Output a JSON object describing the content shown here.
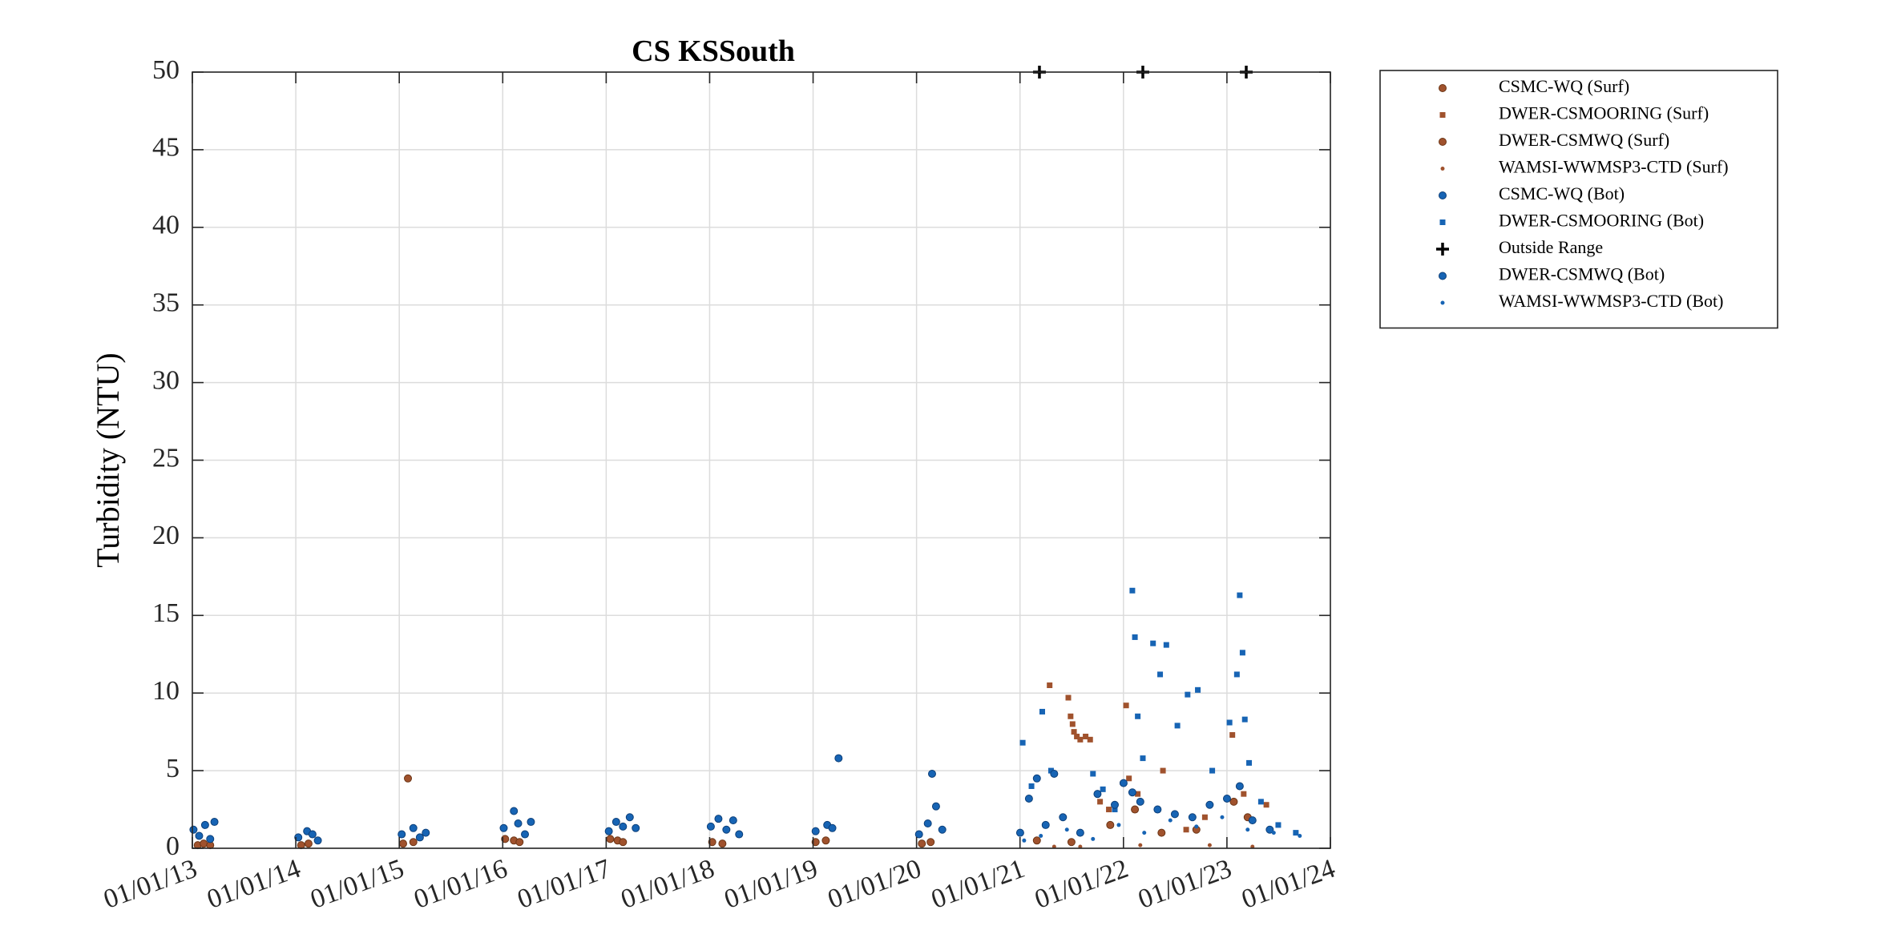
{
  "chart_data": {
    "type": "scatter",
    "title": "CS KSSouth",
    "ylabel": "Turbidity (NTU)",
    "xlabel": "",
    "ylim": [
      0,
      50
    ],
    "yticks": [
      0,
      5,
      10,
      15,
      20,
      25,
      30,
      35,
      40,
      45,
      50
    ],
    "xlim": [
      "2013-01-01",
      "2024-01-01"
    ],
    "xtick_labels": [
      "01/01/13",
      "01/01/14",
      "01/01/15",
      "01/01/16",
      "01/01/17",
      "01/01/18",
      "01/01/19",
      "01/01/20",
      "01/01/21",
      "01/01/22",
      "01/01/23",
      "01/01/24"
    ],
    "grid": true,
    "legend_position": "outside-right",
    "colors": {
      "surface": "#a0522d",
      "bottom": "#1764b4",
      "outside": "#000000"
    },
    "series": [
      {
        "name": "CSMC-WQ (Surf)",
        "marker": "circle",
        "color": "#a0522d",
        "points": [
          [
            "2013-01-20",
            0.2
          ],
          [
            "2013-02-10",
            0.3
          ],
          [
            "2013-03-05",
            0.2
          ],
          [
            "2014-01-20",
            0.2
          ],
          [
            "2014-02-15",
            0.3
          ],
          [
            "2015-01-15",
            0.3
          ],
          [
            "2015-02-01",
            4.5
          ],
          [
            "2015-02-20",
            0.4
          ],
          [
            "2016-01-10",
            0.6
          ],
          [
            "2016-02-10",
            0.5
          ],
          [
            "2016-03-01",
            0.4
          ],
          [
            "2017-01-15",
            0.6
          ],
          [
            "2017-02-10",
            0.5
          ],
          [
            "2017-03-01",
            0.4
          ],
          [
            "2018-01-10",
            0.4
          ],
          [
            "2018-02-15",
            0.3
          ],
          [
            "2019-01-10",
            0.4
          ],
          [
            "2019-02-15",
            0.5
          ],
          [
            "2020-01-20",
            0.3
          ],
          [
            "2020-02-20",
            0.4
          ]
        ]
      },
      {
        "name": "DWER-CSMOORING (Surf)",
        "marker": "square",
        "color": "#a0522d",
        "points": [
          [
            "2021-04-15",
            10.5
          ],
          [
            "2021-06-20",
            9.7
          ],
          [
            "2021-06-28",
            8.5
          ],
          [
            "2021-07-05",
            8.0
          ],
          [
            "2021-07-10",
            7.5
          ],
          [
            "2021-07-20",
            7.2
          ],
          [
            "2021-08-01",
            7.0
          ],
          [
            "2021-08-20",
            7.2
          ],
          [
            "2021-09-05",
            7.0
          ],
          [
            "2021-10-10",
            3.0
          ],
          [
            "2021-11-10",
            2.5
          ],
          [
            "2022-01-10",
            9.2
          ],
          [
            "2022-01-20",
            4.5
          ],
          [
            "2022-02-20",
            3.5
          ],
          [
            "2022-05-20",
            5.0
          ],
          [
            "2022-08-10",
            1.2
          ],
          [
            "2022-10-15",
            2.0
          ],
          [
            "2023-01-20",
            7.3
          ],
          [
            "2023-03-01",
            3.5
          ],
          [
            "2023-05-20",
            2.8
          ]
        ]
      },
      {
        "name": "DWER-CSMWQ (Surf)",
        "marker": "circle",
        "color": "#a0522d",
        "points": [
          [
            "2021-03-01",
            0.5
          ],
          [
            "2021-07-01",
            0.4
          ],
          [
            "2021-11-15",
            1.5
          ],
          [
            "2022-02-10",
            2.5
          ],
          [
            "2022-05-15",
            1.0
          ],
          [
            "2022-09-15",
            1.2
          ],
          [
            "2023-01-25",
            3.0
          ],
          [
            "2023-03-15",
            2.0
          ]
        ]
      },
      {
        "name": "WAMSI-WWMSP3-CTD (Surf)",
        "marker": "dot",
        "color": "#a0522d",
        "points": [
          [
            "2021-05-01",
            0.1
          ],
          [
            "2021-08-01",
            0.1
          ],
          [
            "2022-03-01",
            0.2
          ],
          [
            "2022-11-01",
            0.2
          ],
          [
            "2023-04-01",
            0.1
          ]
        ]
      },
      {
        "name": "CSMC-WQ (Bot)",
        "marker": "circle",
        "color": "#1764b4",
        "points": [
          [
            "2013-01-05",
            1.2
          ],
          [
            "2013-01-25",
            0.8
          ],
          [
            "2013-02-15",
            1.5
          ],
          [
            "2013-03-05",
            0.6
          ],
          [
            "2013-03-20",
            1.7
          ],
          [
            "2014-01-10",
            0.7
          ],
          [
            "2014-02-10",
            1.1
          ],
          [
            "2014-03-01",
            0.9
          ],
          [
            "2014-03-20",
            0.5
          ],
          [
            "2015-01-10",
            0.9
          ],
          [
            "2015-02-20",
            1.3
          ],
          [
            "2015-03-15",
            0.7
          ],
          [
            "2015-04-05",
            1.0
          ],
          [
            "2016-01-05",
            1.3
          ],
          [
            "2016-02-10",
            2.4
          ],
          [
            "2016-02-25",
            1.6
          ],
          [
            "2016-03-20",
            0.9
          ],
          [
            "2016-04-10",
            1.7
          ],
          [
            "2017-01-10",
            1.1
          ],
          [
            "2017-02-05",
            1.7
          ],
          [
            "2017-03-01",
            1.4
          ],
          [
            "2017-03-25",
            2.0
          ],
          [
            "2017-04-15",
            1.3
          ],
          [
            "2018-01-05",
            1.4
          ],
          [
            "2018-02-01",
            1.9
          ],
          [
            "2018-03-01",
            1.2
          ],
          [
            "2018-03-25",
            1.8
          ],
          [
            "2018-04-15",
            0.9
          ],
          [
            "2019-01-10",
            1.1
          ],
          [
            "2019-02-20",
            1.5
          ],
          [
            "2019-03-10",
            1.3
          ],
          [
            "2019-04-01",
            5.8
          ],
          [
            "2020-01-10",
            0.9
          ],
          [
            "2020-02-10",
            1.6
          ],
          [
            "2020-02-25",
            4.8
          ],
          [
            "2020-03-10",
            2.7
          ],
          [
            "2020-04-01",
            1.2
          ]
        ]
      },
      {
        "name": "DWER-CSMOORING (Bot)",
        "marker": "square",
        "color": "#1764b4",
        "points": [
          [
            "2021-01-10",
            6.8
          ],
          [
            "2021-02-10",
            4.0
          ],
          [
            "2021-03-01",
            4.5
          ],
          [
            "2021-03-20",
            8.8
          ],
          [
            "2021-04-20",
            5.0
          ],
          [
            "2021-09-15",
            4.8
          ],
          [
            "2021-10-20",
            3.8
          ],
          [
            "2021-12-01",
            2.5
          ],
          [
            "2022-02-01",
            16.6
          ],
          [
            "2022-02-10",
            13.6
          ],
          [
            "2022-02-20",
            8.5
          ],
          [
            "2022-03-10",
            5.8
          ],
          [
            "2022-04-15",
            13.2
          ],
          [
            "2022-05-10",
            11.2
          ],
          [
            "2022-06-01",
            13.1
          ],
          [
            "2022-07-10",
            7.9
          ],
          [
            "2022-08-15",
            9.9
          ],
          [
            "2022-09-20",
            10.2
          ],
          [
            "2022-11-10",
            5.0
          ],
          [
            "2023-01-10",
            8.1
          ],
          [
            "2023-02-05",
            11.2
          ],
          [
            "2023-02-15",
            16.3
          ],
          [
            "2023-02-25",
            12.6
          ],
          [
            "2023-03-05",
            8.3
          ],
          [
            "2023-03-20",
            5.5
          ],
          [
            "2023-05-01",
            3.0
          ],
          [
            "2023-07-01",
            1.5
          ],
          [
            "2023-09-01",
            1.0
          ]
        ]
      },
      {
        "name": "Outside Range",
        "marker": "plus",
        "color": "#000000",
        "points": [
          [
            "2021-03-10",
            50
          ],
          [
            "2022-03-10",
            50
          ],
          [
            "2023-03-10",
            50
          ]
        ]
      },
      {
        "name": "DWER-CSMWQ (Bot)",
        "marker": "circle",
        "color": "#1764b4",
        "points": [
          [
            "2021-01-01",
            1.0
          ],
          [
            "2021-02-01",
            3.2
          ],
          [
            "2021-03-01",
            4.5
          ],
          [
            "2021-04-01",
            1.5
          ],
          [
            "2021-05-01",
            4.8
          ],
          [
            "2021-06-01",
            2.0
          ],
          [
            "2021-08-01",
            1.0
          ],
          [
            "2021-10-01",
            3.5
          ],
          [
            "2021-12-01",
            2.8
          ],
          [
            "2022-01-01",
            4.2
          ],
          [
            "2022-02-01",
            3.6
          ],
          [
            "2022-03-01",
            3.0
          ],
          [
            "2022-05-01",
            2.5
          ],
          [
            "2022-07-01",
            2.2
          ],
          [
            "2022-09-01",
            2.0
          ],
          [
            "2022-11-01",
            2.8
          ],
          [
            "2023-01-01",
            3.2
          ],
          [
            "2023-02-15",
            4.0
          ],
          [
            "2023-04-01",
            1.8
          ],
          [
            "2023-06-01",
            1.2
          ]
        ]
      },
      {
        "name": "WAMSI-WWMSP3-CTD (Bot)",
        "marker": "dot",
        "color": "#1764b4",
        "points": [
          [
            "2021-01-15",
            0.5
          ],
          [
            "2021-03-15",
            0.8
          ],
          [
            "2021-06-15",
            1.2
          ],
          [
            "2021-09-15",
            0.6
          ],
          [
            "2021-12-15",
            1.5
          ],
          [
            "2022-03-15",
            1.0
          ],
          [
            "2022-06-15",
            1.8
          ],
          [
            "2022-09-15",
            1.4
          ],
          [
            "2022-12-15",
            2.0
          ],
          [
            "2023-03-15",
            1.2
          ],
          [
            "2023-06-15",
            1.0
          ],
          [
            "2023-09-15",
            0.8
          ]
        ]
      }
    ]
  }
}
